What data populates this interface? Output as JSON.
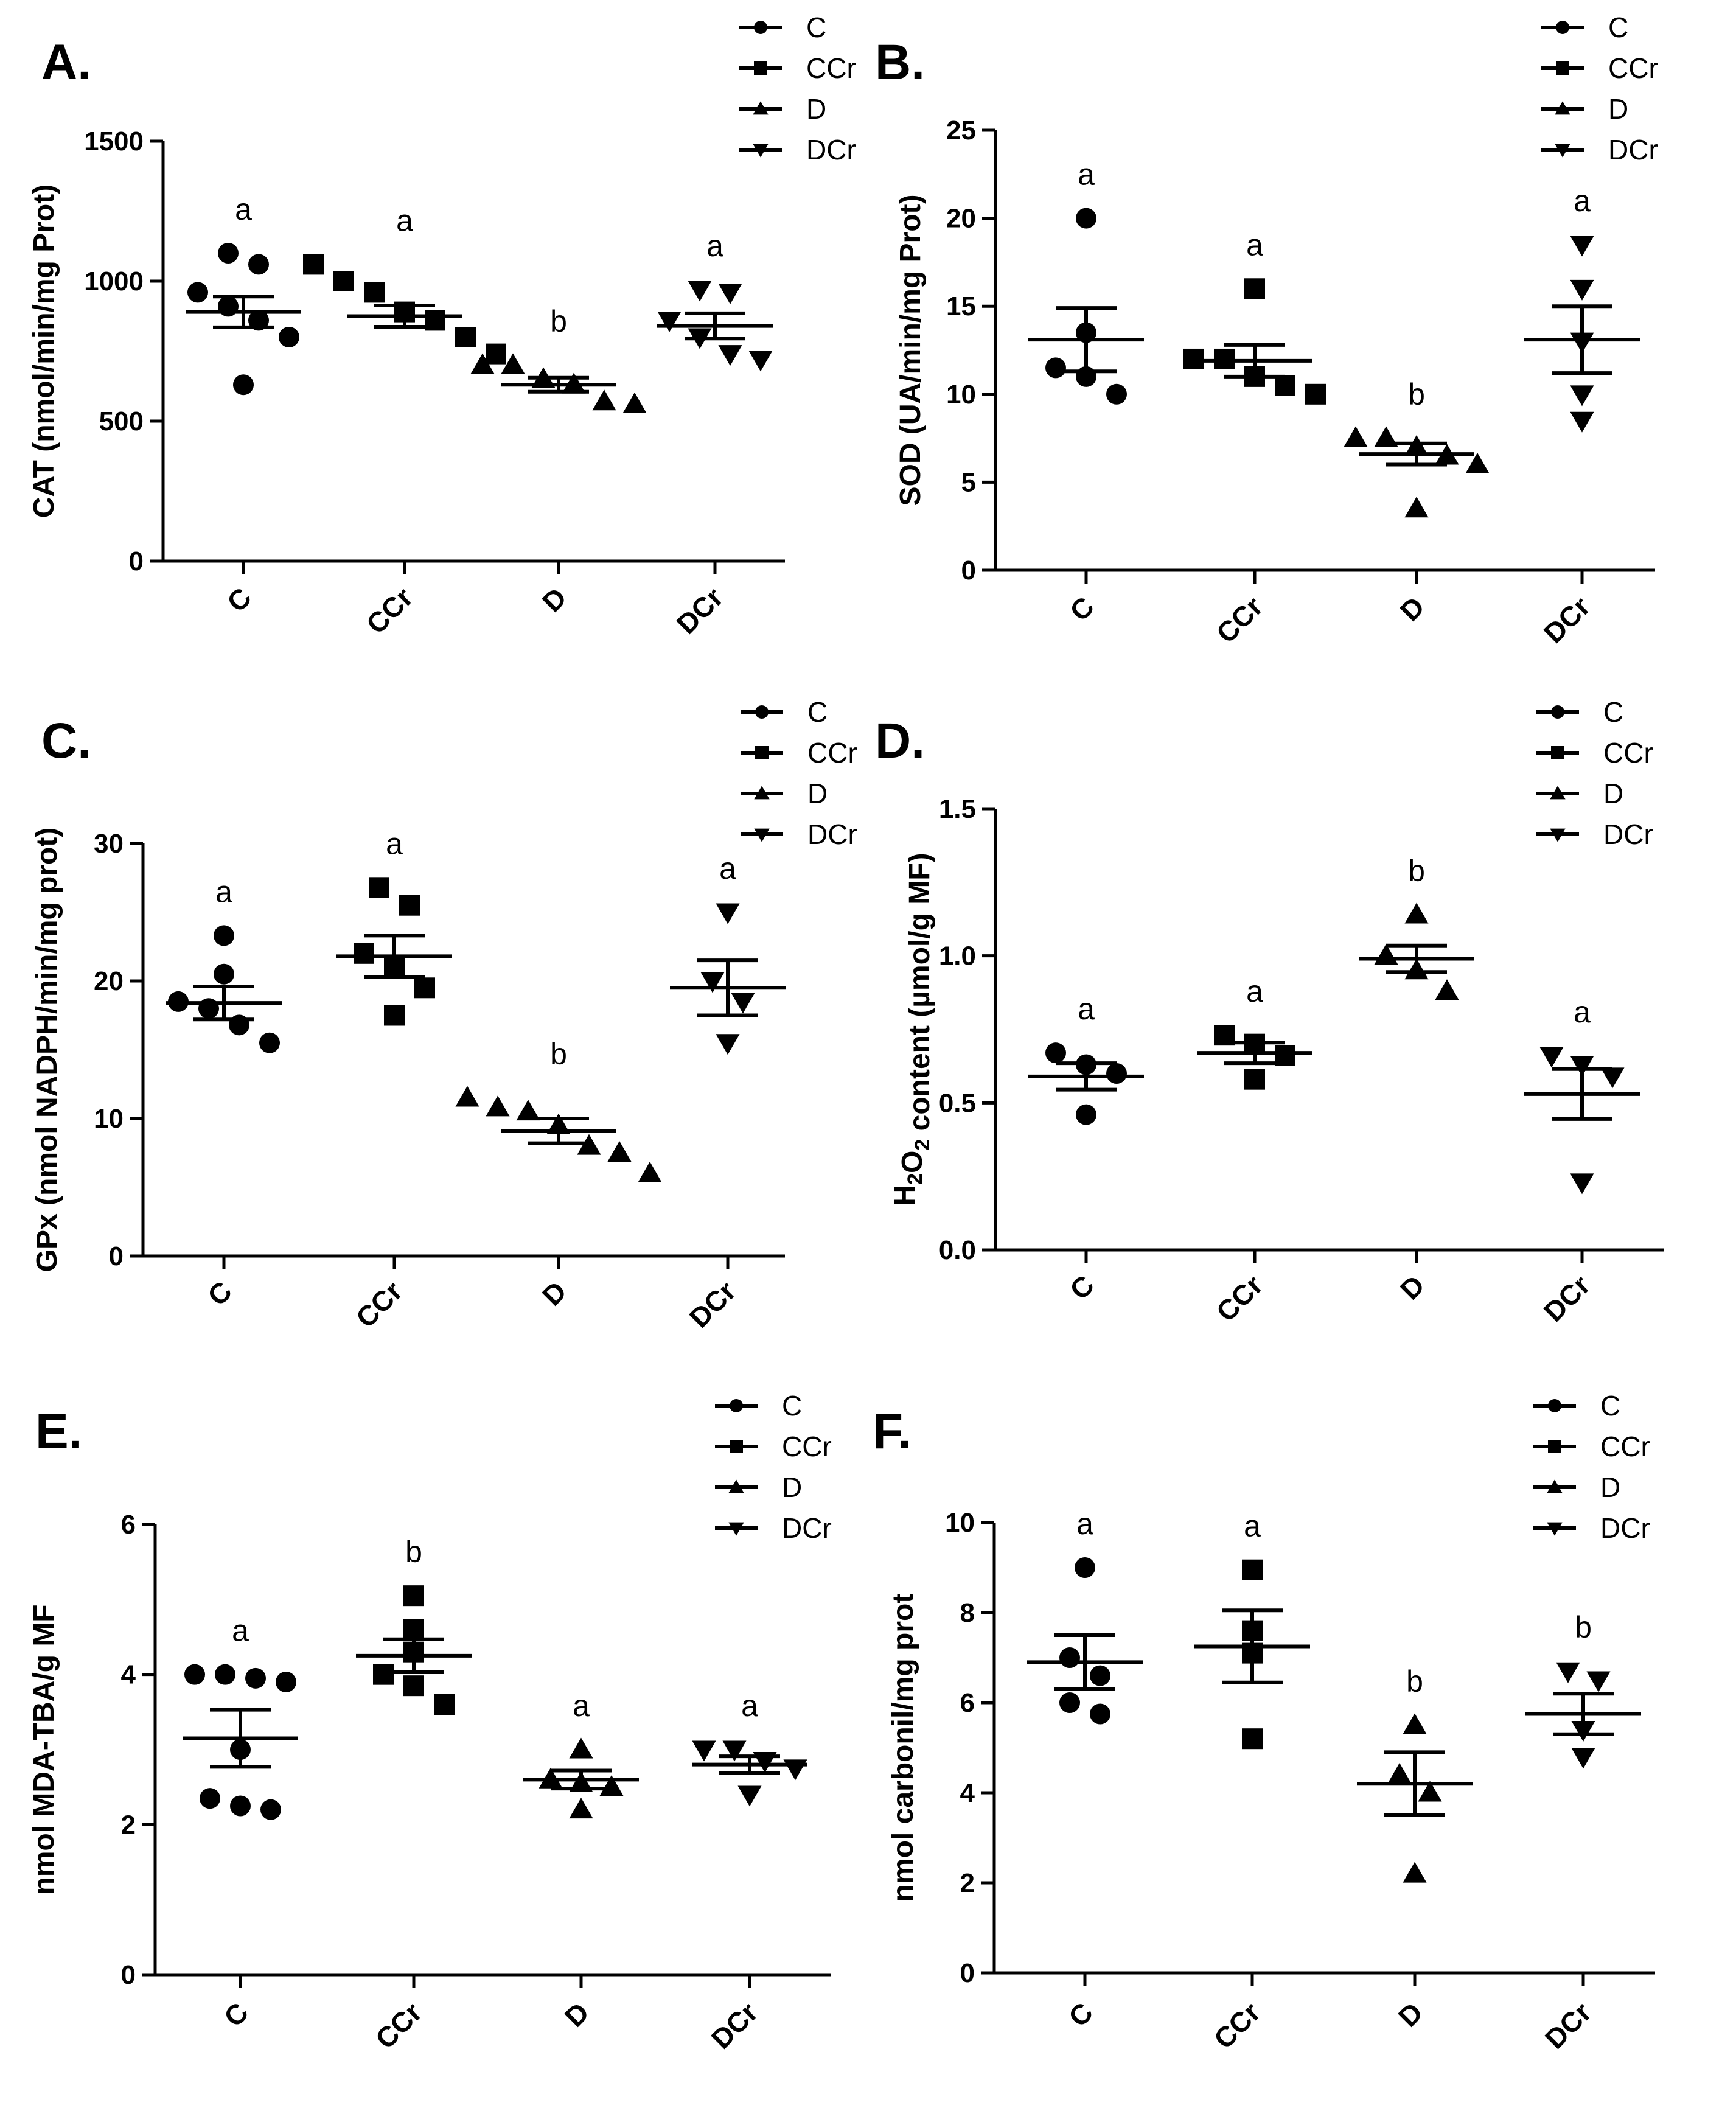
{
  "figure": {
    "categories": [
      "C",
      "CCr",
      "D",
      "DCr"
    ],
    "legend": [
      "C",
      "CCr",
      "D",
      "DCr"
    ],
    "markers": [
      "circle",
      "square",
      "triangle-up",
      "triangle-down"
    ],
    "colors": {
      "marker": "#000000",
      "axis": "#000000",
      "background": "#ffffff"
    }
  },
  "chart_data": [
    {
      "type": "scatter",
      "panel": "A.",
      "title": "",
      "xlabel": "",
      "ylabel": "CAT (nmol/min/mg Prot)",
      "ylim": [
        0,
        1500
      ],
      "yticks": [
        0,
        500,
        1000,
        1500
      ],
      "ytick_labels": [
        "0",
        "500",
        "1000",
        "1500"
      ],
      "categories": [
        "C",
        "CCr",
        "D",
        "DCr"
      ],
      "series": [
        {
          "name": "C",
          "marker": "circle",
          "points": [
            1100,
            1060,
            960,
            910,
            860,
            800,
            630
          ],
          "mean": 890,
          "sem": 55,
          "letter": "a"
        },
        {
          "name": "CCr",
          "marker": "square",
          "points": [
            1060,
            1000,
            960,
            890,
            860,
            800,
            740
          ],
          "mean": 875,
          "sem": 38,
          "letter": "a"
        },
        {
          "name": "D",
          "marker": "triangle-up",
          "points": [
            700,
            700,
            650,
            630,
            570,
            560
          ],
          "mean": 630,
          "sem": 25,
          "letter": "b"
        },
        {
          "name": "DCr",
          "marker": "triangle-down",
          "points": [
            970,
            960,
            860,
            800,
            740,
            720
          ],
          "mean": 840,
          "sem": 45,
          "letter": "a"
        }
      ]
    },
    {
      "type": "scatter",
      "panel": "B.",
      "title": "",
      "xlabel": "",
      "ylabel": "SOD (UA/min/mg Prot)",
      "ylim": [
        0,
        25
      ],
      "yticks": [
        0,
        5,
        10,
        15,
        20,
        25
      ],
      "ytick_labels": [
        "0",
        "5",
        "10",
        "15",
        "20",
        "25"
      ],
      "categories": [
        "C",
        "CCr",
        "D",
        "DCr"
      ],
      "series": [
        {
          "name": "C",
          "marker": "circle",
          "points": [
            20,
            13.5,
            11.5,
            11,
            10
          ],
          "mean": 13.1,
          "sem": 1.8,
          "letter": "a"
        },
        {
          "name": "CCr",
          "marker": "square",
          "points": [
            16,
            12,
            12,
            11,
            10.5,
            10
          ],
          "mean": 11.9,
          "sem": 0.9,
          "letter": "a"
        },
        {
          "name": "D",
          "marker": "triangle-up",
          "points": [
            7.5,
            7.5,
            7,
            6.5,
            6,
            3.5
          ],
          "mean": 6.6,
          "sem": 0.6,
          "letter": "b"
        },
        {
          "name": "DCr",
          "marker": "triangle-down",
          "points": [
            18.5,
            16,
            13,
            10,
            8.5
          ],
          "mean": 13.1,
          "sem": 1.9,
          "letter": "a"
        }
      ]
    },
    {
      "type": "scatter",
      "panel": "C.",
      "title": "",
      "xlabel": "",
      "ylabel": "GPx (nmol NADPH/min/mg prot)",
      "ylim": [
        0,
        30
      ],
      "yticks": [
        0,
        10,
        20,
        30
      ],
      "ytick_labels": [
        "0",
        "10",
        "20",
        "30"
      ],
      "categories": [
        "C",
        "CCr",
        "D",
        "DCr"
      ],
      "series": [
        {
          "name": "C",
          "marker": "circle",
          "points": [
            23.3,
            20.5,
            18.5,
            18,
            16.8,
            15.5
          ],
          "mean": 18.4,
          "sem": 1.2,
          "letter": "a"
        },
        {
          "name": "CCr",
          "marker": "square",
          "points": [
            26.8,
            25.5,
            22,
            21,
            19.5,
            17.5
          ],
          "mean": 21.8,
          "sem": 1.5,
          "letter": "a"
        },
        {
          "name": "D",
          "marker": "triangle-up",
          "points": [
            11.5,
            10.8,
            10.5,
            9.5,
            8,
            7.5,
            6
          ],
          "mean": 9.1,
          "sem": 0.9,
          "letter": "b"
        },
        {
          "name": "DCr",
          "marker": "triangle-down",
          "points": [
            25,
            20,
            18.5,
            15.5
          ],
          "mean": 19.5,
          "sem": 2.0,
          "letter": "a"
        }
      ]
    },
    {
      "type": "scatter",
      "panel": "D.",
      "title": "",
      "xlabel": "",
      "ylabel": "H2O2 content (µmol/g MF)",
      "ylabel_parts": {
        "pre": "H",
        "sub1": "2",
        "mid": "O",
        "sub2": "2",
        "post": " content (µmol/g MF)"
      },
      "ylim": [
        0,
        1.5
      ],
      "yticks": [
        0,
        0.5,
        1.0,
        1.5
      ],
      "ytick_labels": [
        "0.0",
        "0.5",
        "1.0",
        "1.5"
      ],
      "categories": [
        "C",
        "CCr",
        "D",
        "DCr"
      ],
      "series": [
        {
          "name": "C",
          "marker": "circle",
          "points": [
            0.67,
            0.63,
            0.6,
            0.46
          ],
          "mean": 0.59,
          "sem": 0.045,
          "letter": "a"
        },
        {
          "name": "CCr",
          "marker": "square",
          "points": [
            0.73,
            0.7,
            0.66,
            0.58
          ],
          "mean": 0.67,
          "sem": 0.035,
          "letter": "a"
        },
        {
          "name": "D",
          "marker": "triangle-up",
          "points": [
            1.14,
            1.0,
            0.95,
            0.88
          ],
          "mean": 0.99,
          "sem": 0.045,
          "letter": "b"
        },
        {
          "name": "DCr",
          "marker": "triangle-down",
          "points": [
            0.66,
            0.63,
            0.59,
            0.23
          ],
          "mean": 0.53,
          "sem": 0.085,
          "letter": "a"
        }
      ]
    },
    {
      "type": "scatter",
      "panel": "E.",
      "title": "",
      "xlabel": "",
      "ylabel": "nmol MDA-TBA/g MF",
      "ylim": [
        0,
        6
      ],
      "yticks": [
        0,
        2,
        4,
        6
      ],
      "ytick_labels": [
        "0",
        "2",
        "4",
        "6"
      ],
      "categories": [
        "C",
        "CCr",
        "D",
        "DCr"
      ],
      "series": [
        {
          "name": "C",
          "marker": "circle",
          "points": [
            4.0,
            4.0,
            3.95,
            3.9,
            3.0,
            2.35,
            2.25,
            2.2
          ],
          "mean": 3.15,
          "sem": 0.38,
          "letter": "a"
        },
        {
          "name": "CCr",
          "marker": "square",
          "points": [
            5.05,
            4.6,
            4.3,
            4.0,
            3.85,
            3.6
          ],
          "mean": 4.25,
          "sem": 0.22,
          "letter": "b"
        },
        {
          "name": "D",
          "marker": "triangle-up",
          "points": [
            3.0,
            2.6,
            2.55,
            2.5,
            2.2
          ],
          "mean": 2.6,
          "sem": 0.12,
          "letter": "a"
        },
        {
          "name": "DCr",
          "marker": "triangle-down",
          "points": [
            3.0,
            3.0,
            2.85,
            2.75,
            2.4
          ],
          "mean": 2.8,
          "sem": 0.11,
          "letter": "a"
        }
      ]
    },
    {
      "type": "scatter",
      "panel": "F.",
      "title": "",
      "xlabel": "",
      "ylabel": "nmol carbonil/mg prot",
      "ylim": [
        0,
        10
      ],
      "yticks": [
        0,
        2,
        4,
        6,
        8,
        10
      ],
      "ytick_labels": [
        "0",
        "2",
        "4",
        "6",
        "8",
        "10"
      ],
      "categories": [
        "C",
        "CCr",
        "D",
        "DCr"
      ],
      "series": [
        {
          "name": "C",
          "marker": "circle",
          "points": [
            9.0,
            7.0,
            6.6,
            6.0,
            5.75
          ],
          "mean": 6.9,
          "sem": 0.6,
          "letter": "a"
        },
        {
          "name": "CCr",
          "marker": "square",
          "points": [
            8.95,
            7.6,
            7.1,
            5.2
          ],
          "mean": 7.25,
          "sem": 0.8,
          "letter": "a"
        },
        {
          "name": "D",
          "marker": "triangle-up",
          "points": [
            5.5,
            4.4,
            4.0,
            2.2
          ],
          "mean": 4.2,
          "sem": 0.7,
          "letter": "b"
        },
        {
          "name": "DCr",
          "marker": "triangle-down",
          "points": [
            6.7,
            6.5,
            5.4,
            4.8
          ],
          "mean": 5.75,
          "sem": 0.45,
          "letter": "b"
        }
      ]
    }
  ]
}
